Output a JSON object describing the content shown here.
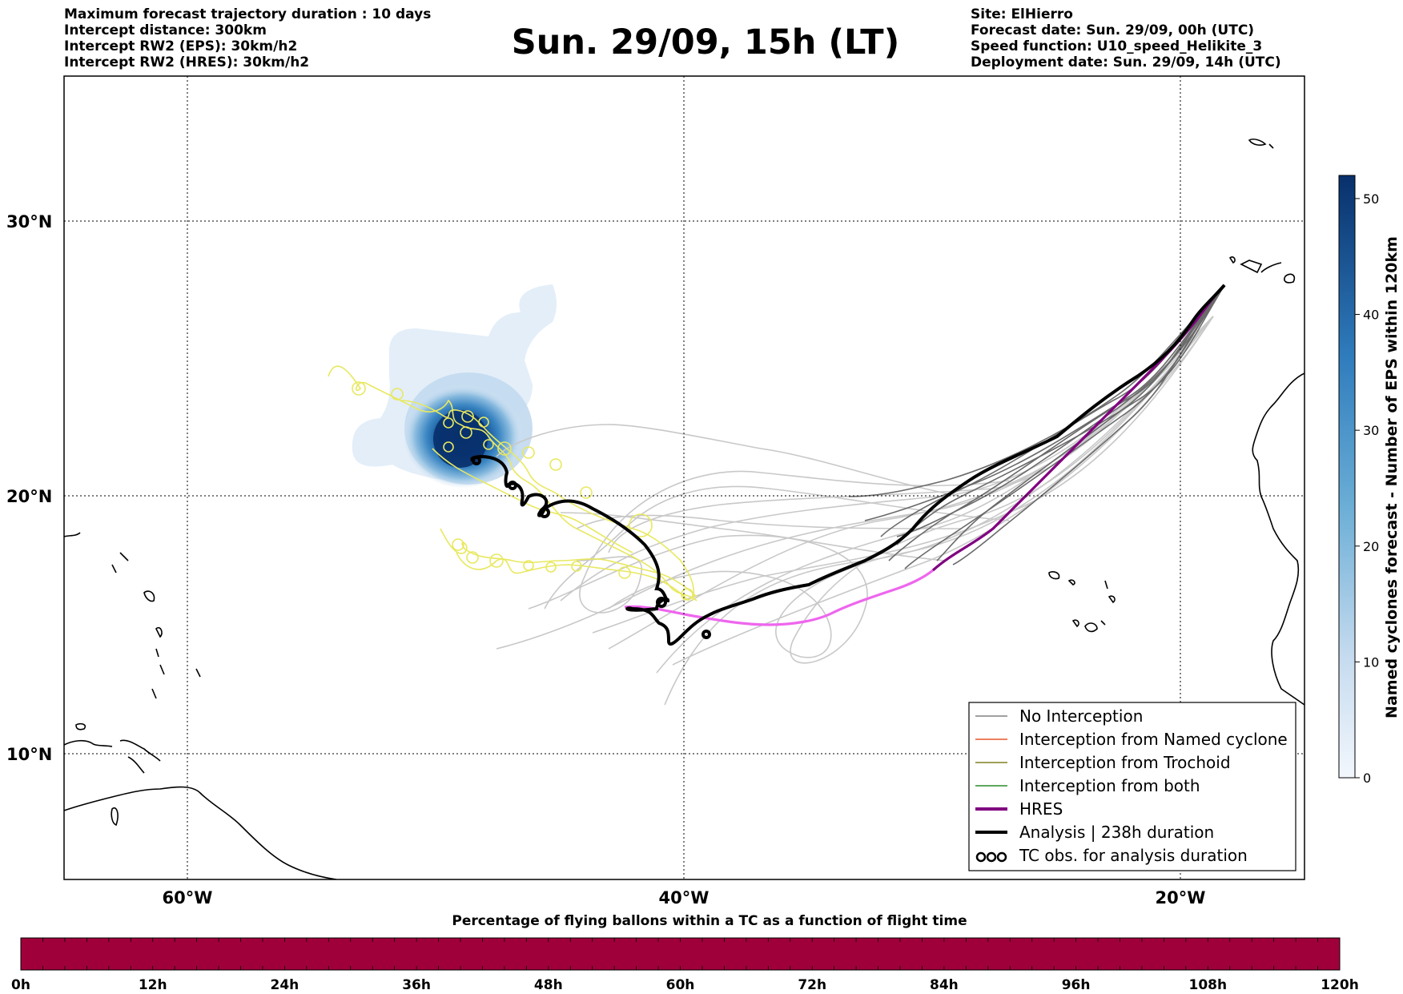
{
  "header_left": [
    "Maximum forecast trajectory duration : 10 days",
    "Intercept distance: 300km",
    "Intercept RW2 (EPS):  30km/h2",
    "Intercept RW2 (HRES): 30km/h2"
  ],
  "header_right": [
    "Site: ElHierro",
    "Forecast date: Sun. 29/09, 00h (UTC)",
    "Speed function: U10_speed_Helikite_3",
    "Deployment date: Sun. 29/09, 14h (UTC)"
  ],
  "title": "Sun. 29/09, 15h (LT)",
  "map": {
    "lat_labels": [
      "30°N",
      "20°N",
      "10°N"
    ],
    "lon_labels": [
      "60°W",
      "40°W",
      "20°W"
    ],
    "lat_ticks": [
      30,
      20,
      10
    ],
    "lon_ticks": [
      -60,
      -40,
      -20
    ],
    "lon_range": [
      -65,
      -15
    ],
    "lat_range": [
      5.4,
      34.7
    ]
  },
  "colorbar": {
    "title": "Named cyclones forecast - Number of EPS within 120km",
    "ticks": [
      "0",
      "10",
      "20",
      "30",
      "40",
      "50"
    ],
    "range": [
      0,
      52
    ],
    "color_low": "#e6f0fa",
    "color_high": "#0a3a78"
  },
  "legend": {
    "items": [
      {
        "label": "No Interception",
        "color": "#808080",
        "kind": "thin"
      },
      {
        "label": "Interception from Named cyclone",
        "color": "#e8552a",
        "kind": "thin"
      },
      {
        "label": "Interception from Trochoid",
        "color": "#808020",
        "kind": "thin"
      },
      {
        "label": "Interception from both",
        "color": "#2a8a2a",
        "kind": "thin"
      },
      {
        "label": "HRES",
        "color": "#800080",
        "kind": "thick"
      },
      {
        "label": "Analysis | 238h duration",
        "color": "#000000",
        "kind": "thick"
      },
      {
        "label": "TC obs. for analysis duration",
        "color": "#000000",
        "kind": "loops"
      }
    ]
  },
  "bottom": {
    "title": "Percentage of flying ballons within a TC as a function of flight time",
    "bar_color": "#a0003a",
    "time_labels": [
      "0h",
      "12h",
      "24h",
      "36h",
      "48h",
      "60h",
      "72h",
      "84h",
      "96h",
      "108h",
      "120h"
    ]
  },
  "colors": {
    "gray_traj": "#c8c8c8",
    "dark_traj": "#6a6a6a",
    "yellow_traj": "#e8e860",
    "hres_magenta": "#ee66ee",
    "hres_purple": "#800080",
    "analysis": "#000000"
  }
}
